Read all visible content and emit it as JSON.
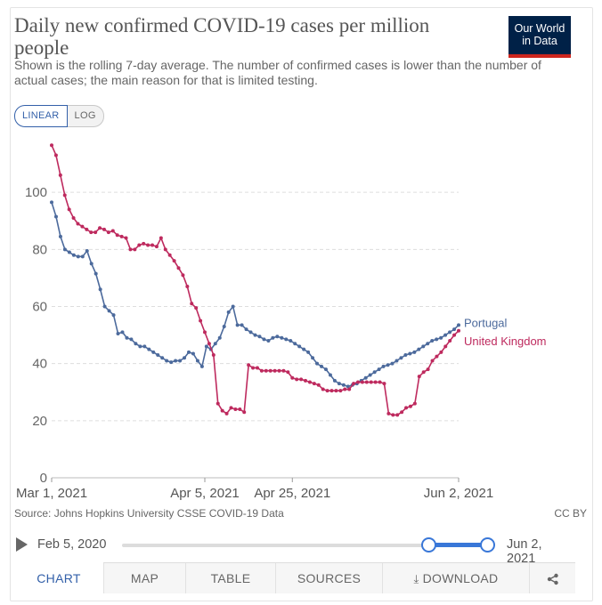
{
  "header": {
    "title": "Daily new confirmed COVID-19 cases per million people",
    "subtitle": "Shown is the rolling 7-day average. The number of confirmed cases is lower than the number of actual cases; the main reason for that is limited testing.",
    "logo_line1": "Our World",
    "logo_line2": "in Data"
  },
  "scale_toggle": {
    "linear": "LINEAR",
    "log": "LOG",
    "selected": "LINEAR"
  },
  "footer": {
    "source": "Source: Johns Hopkins University CSSE COVID-19 Data",
    "license": "CC BY"
  },
  "timeline": {
    "start_label": "Feb 5, 2020",
    "end_label": "Jun 2, 2021",
    "selection_start": 0.84,
    "selection_end": 1.0
  },
  "tabs": [
    {
      "label": "CHART",
      "icon": ""
    },
    {
      "label": "MAP",
      "icon": ""
    },
    {
      "label": "TABLE",
      "icon": ""
    },
    {
      "label": "SOURCES",
      "icon": ""
    },
    {
      "label": "DOWNLOAD",
      "icon": "download-icon"
    },
    {
      "label": "",
      "icon": "share-icon"
    }
  ],
  "chart_data": {
    "type": "line",
    "title": "Daily new confirmed COVID-19 cases per million people",
    "xlabel": "",
    "ylabel": "",
    "ylim": [
      0,
      120
    ],
    "yticks": [
      0,
      20,
      40,
      60,
      80,
      100
    ],
    "x_start_day": 0,
    "x_end_day": 93,
    "xticks": [
      {
        "day": 0,
        "label": "Mar 1, 2021"
      },
      {
        "day": 35,
        "label": "Apr 5, 2021"
      },
      {
        "day": 55,
        "label": "Apr 25, 2021"
      },
      {
        "day": 93,
        "label": "Jun 2, 2021"
      }
    ],
    "grid": true,
    "series": [
      {
        "name": "Portugal",
        "color": "#4c6a9c",
        "values": [
          96.5,
          91.5,
          84.5,
          80,
          79,
          78,
          77.5,
          77.5,
          79.5,
          75,
          71.5,
          66,
          60,
          58.5,
          57,
          50.5,
          51,
          49,
          48.5,
          47,
          46,
          46,
          45,
          44,
          43,
          42,
          41,
          40.5,
          41,
          41,
          42,
          44,
          43.5,
          41,
          39,
          46,
          45,
          47,
          49,
          53,
          58,
          60,
          53.5,
          53.5,
          52,
          51,
          50,
          49.5,
          48.5,
          48,
          49,
          49.5,
          49,
          48.5,
          48,
          47,
          46,
          45,
          44,
          42,
          40,
          39,
          38,
          36,
          34,
          33,
          32.5,
          32,
          32.5,
          33,
          34,
          35,
          36,
          37,
          38,
          39,
          39.5,
          40,
          41,
          42,
          43,
          43.5,
          44,
          45,
          46,
          47,
          48,
          48.5,
          49,
          50,
          51,
          52,
          53.5
        ]
      },
      {
        "name": "United Kingdom",
        "color": "#be2a5e",
        "values": [
          116.5,
          113,
          106,
          99,
          94,
          91,
          89,
          88,
          87,
          86,
          86,
          87.5,
          87,
          86,
          86.5,
          85,
          84.5,
          84,
          80,
          80,
          81.5,
          82,
          81.5,
          81.5,
          81,
          84,
          80,
          78,
          76,
          73.5,
          71,
          67,
          61,
          59.5,
          55,
          51,
          47,
          43,
          26,
          23.5,
          22.5,
          24.5,
          24,
          24,
          23,
          39.5,
          38.5,
          38.5,
          37.5,
          37.5,
          37.5,
          37.5,
          37.5,
          37.5,
          37,
          35,
          34.5,
          34.5,
          34,
          33.5,
          33,
          32.5,
          31,
          30.5,
          30.5,
          30.5,
          30.5,
          31,
          31,
          33,
          33.5,
          33.5,
          33.5,
          33.5,
          33.5,
          33.5,
          33,
          22.5,
          22,
          22,
          23,
          24.5,
          25,
          26,
          35.5,
          37,
          38,
          41,
          42.5,
          44,
          46,
          48,
          50,
          51.5
        ]
      }
    ]
  }
}
